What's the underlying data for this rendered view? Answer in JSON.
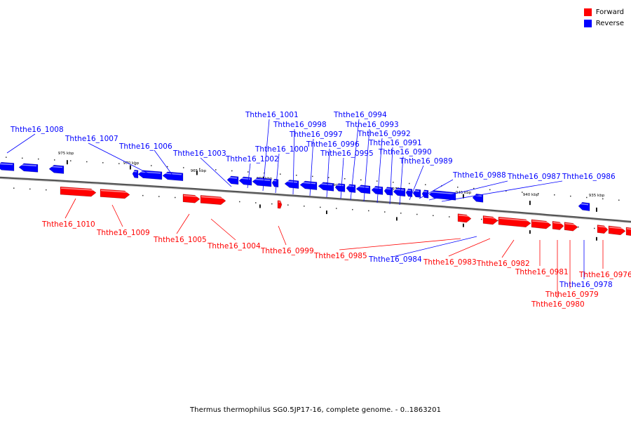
{
  "legend": {
    "forward": {
      "label": "Forward",
      "color": "#ff0000"
    },
    "reverse": {
      "label": "Reverse",
      "color": "#0000ff"
    }
  },
  "caption": "Thermus thermophilus SG0.5JP17-16, complete genome. - 0..1863201",
  "scale_labels": [
    "975 kbp",
    "970 kbp",
    "965 kbp",
    "960 kbp",
    "955 kbp",
    "950 kbp",
    "945 kbp",
    "940 kbp",
    "935 kbp"
  ],
  "genes_reverse": [
    "Ththe16_1008",
    "Ththe16_1007",
    "Ththe16_1006",
    "Ththe16_1003",
    "Ththe16_1002",
    "Ththe16_1001",
    "Ththe16_1000",
    "Ththe16_0998",
    "Ththe16_0997",
    "Ththe16_0996",
    "Ththe16_0995",
    "Ththe16_0994",
    "Ththe16_0993",
    "Ththe16_0992",
    "Ththe16_0991",
    "Ththe16_0990",
    "Ththe16_0989",
    "Ththe16_0988",
    "Ththe16_0987",
    "Ththe16_0986",
    "Ththe16_0984",
    "Ththe16_0978"
  ],
  "genes_forward": [
    "Ththe16_1010",
    "Ththe16_1009",
    "Ththe16_1005",
    "Ththe16_1004",
    "Ththe16_0999",
    "Ththe16_0985",
    "Ththe16_0983",
    "Ththe16_0982",
    "Ththe16_0981",
    "Ththe16_0979",
    "Ththe16_0980",
    "Ththe16_0976"
  ]
}
